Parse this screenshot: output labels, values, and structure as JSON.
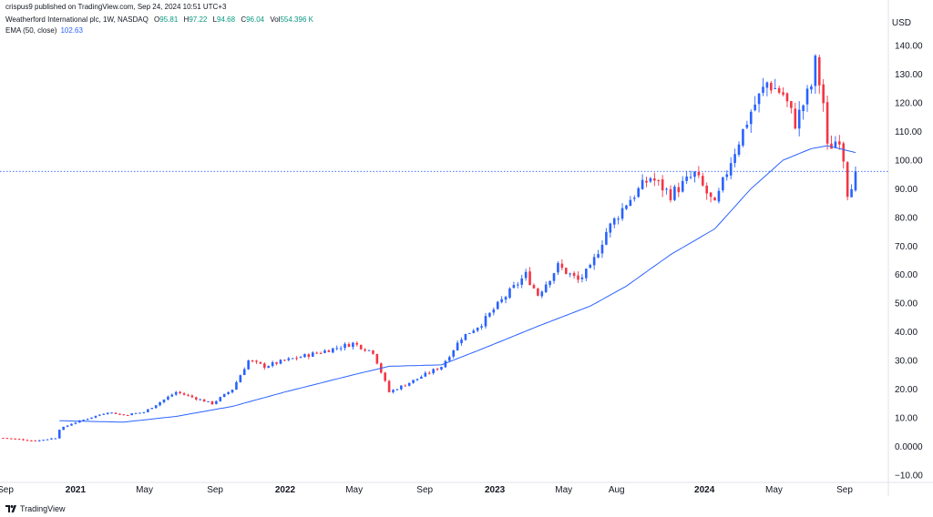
{
  "header": {
    "published": "crispus9 published on TradingView.com, Sep 24, 2024 10:51 UTC+3"
  },
  "legend": {
    "symbol": "Weatherford International plc, 1W, NASDAQ",
    "o_label": "O",
    "o": "95.81",
    "h_label": "H",
    "h": "97.22",
    "l_label": "L",
    "l": "94.68",
    "c_label": "C",
    "c": "96.04",
    "vol_label": "Vol",
    "vol": "554.396 K",
    "ema_label": "EMA (50, close)",
    "ema_value": "102.63"
  },
  "axis": {
    "currency": "USD"
  },
  "footer": {
    "brand": "TradingView"
  },
  "colors": {
    "up": "#2962ff",
    "down": "#f23645",
    "ema": "#2962ff",
    "price_line": "#2962ff"
  },
  "chart_data": {
    "type": "candlestick",
    "ylim": [
      -12,
      146
    ],
    "y_ticks": [
      140,
      130,
      120,
      110,
      100,
      90,
      80,
      70,
      60,
      50,
      40,
      30,
      20,
      10,
      0,
      -10
    ],
    "y_tick_labels": [
      "140.00",
      "130.00",
      "120.00",
      "110.00",
      "100.00",
      "90.00",
      "80.00",
      "70.00",
      "60.00",
      "50.00",
      "40.00",
      "30.00",
      "20.00",
      "10.00",
      "0.0000",
      "−10.00"
    ],
    "x_ticks": [
      {
        "label": "Sep",
        "bold": false,
        "date": "2020-09"
      },
      {
        "label": "2021",
        "bold": true,
        "date": "2021-01"
      },
      {
        "label": "May",
        "bold": false,
        "date": "2021-05"
      },
      {
        "label": "Sep",
        "bold": false,
        "date": "2021-09"
      },
      {
        "label": "2022",
        "bold": true,
        "date": "2022-01"
      },
      {
        "label": "May",
        "bold": false,
        "date": "2022-05"
      },
      {
        "label": "Sep",
        "bold": false,
        "date": "2022-09"
      },
      {
        "label": "2023",
        "bold": true,
        "date": "2023-01"
      },
      {
        "label": "May",
        "bold": false,
        "date": "2023-05"
      },
      {
        "label": "Aug",
        "bold": false,
        "date": "2023-08"
      },
      {
        "label": "2024",
        "bold": true,
        "date": "2024-01"
      },
      {
        "label": "May",
        "bold": false,
        "date": "2024-05"
      },
      {
        "label": "Sep",
        "bold": false,
        "date": "2024-09"
      }
    ],
    "current_price": 96.04,
    "close_path": [
      [
        "2020-08-28",
        3
      ],
      [
        "2020-10-23",
        2
      ],
      [
        "2020-11-27",
        3
      ],
      [
        "2020-12-04",
        6
      ],
      [
        "2020-12-25",
        8
      ],
      [
        "2021-02-26",
        12
      ],
      [
        "2021-03-26",
        11
      ],
      [
        "2021-04-30",
        12
      ],
      [
        "2021-06-25",
        19
      ],
      [
        "2021-08-27",
        15
      ],
      [
        "2021-10-01",
        20
      ],
      [
        "2021-10-29",
        30
      ],
      [
        "2021-11-26",
        28
      ],
      [
        "2021-12-31",
        30
      ],
      [
        "2022-03-04",
        33
      ],
      [
        "2022-04-29",
        36
      ],
      [
        "2022-06-03",
        33
      ],
      [
        "2022-07-01",
        19
      ],
      [
        "2022-08-12",
        23
      ],
      [
        "2022-09-30",
        28
      ],
      [
        "2022-11-04",
        38
      ],
      [
        "2022-12-09",
        43
      ],
      [
        "2023-01-13",
        51
      ],
      [
        "2023-02-24",
        60
      ],
      [
        "2023-03-17",
        53
      ],
      [
        "2023-04-21",
        63
      ],
      [
        "2023-05-26",
        58
      ],
      [
        "2023-06-16",
        62
      ],
      [
        "2023-07-14",
        75
      ],
      [
        "2023-08-18",
        85
      ],
      [
        "2023-09-29",
        94
      ],
      [
        "2023-11-03",
        88
      ],
      [
        "2023-12-15",
        95
      ],
      [
        "2024-01-19",
        84
      ],
      [
        "2024-02-16",
        100
      ],
      [
        "2024-03-22",
        117
      ],
      [
        "2024-04-19",
        127
      ],
      [
        "2024-05-17",
        123
      ],
      [
        "2024-06-07",
        113
      ],
      [
        "2024-07-05",
        126
      ],
      [
        "2024-07-12",
        134
      ],
      [
        "2024-07-26",
        120
      ],
      [
        "2024-08-02",
        104
      ],
      [
        "2024-08-23",
        108
      ],
      [
        "2024-08-30",
        101
      ],
      [
        "2024-09-06",
        89
      ],
      [
        "2024-09-13",
        92
      ],
      [
        "2024-09-20",
        96.04
      ]
    ],
    "ema_path": [
      [
        "2020-12-04",
        9
      ],
      [
        "2021-03-26",
        8.5
      ],
      [
        "2021-06-25",
        10.5
      ],
      [
        "2021-10-01",
        14
      ],
      [
        "2021-12-31",
        19
      ],
      [
        "2022-04-29",
        25
      ],
      [
        "2022-07-01",
        28
      ],
      [
        "2022-09-30",
        28.5
      ],
      [
        "2022-12-09",
        34
      ],
      [
        "2023-03-17",
        42
      ],
      [
        "2023-06-16",
        49
      ],
      [
        "2023-08-18",
        56
      ],
      [
        "2023-11-03",
        67
      ],
      [
        "2024-01-19",
        76
      ],
      [
        "2024-03-22",
        90
      ],
      [
        "2024-05-17",
        100
      ],
      [
        "2024-07-05",
        104
      ],
      [
        "2024-08-02",
        105
      ],
      [
        "2024-09-20",
        102.63
      ]
    ]
  }
}
